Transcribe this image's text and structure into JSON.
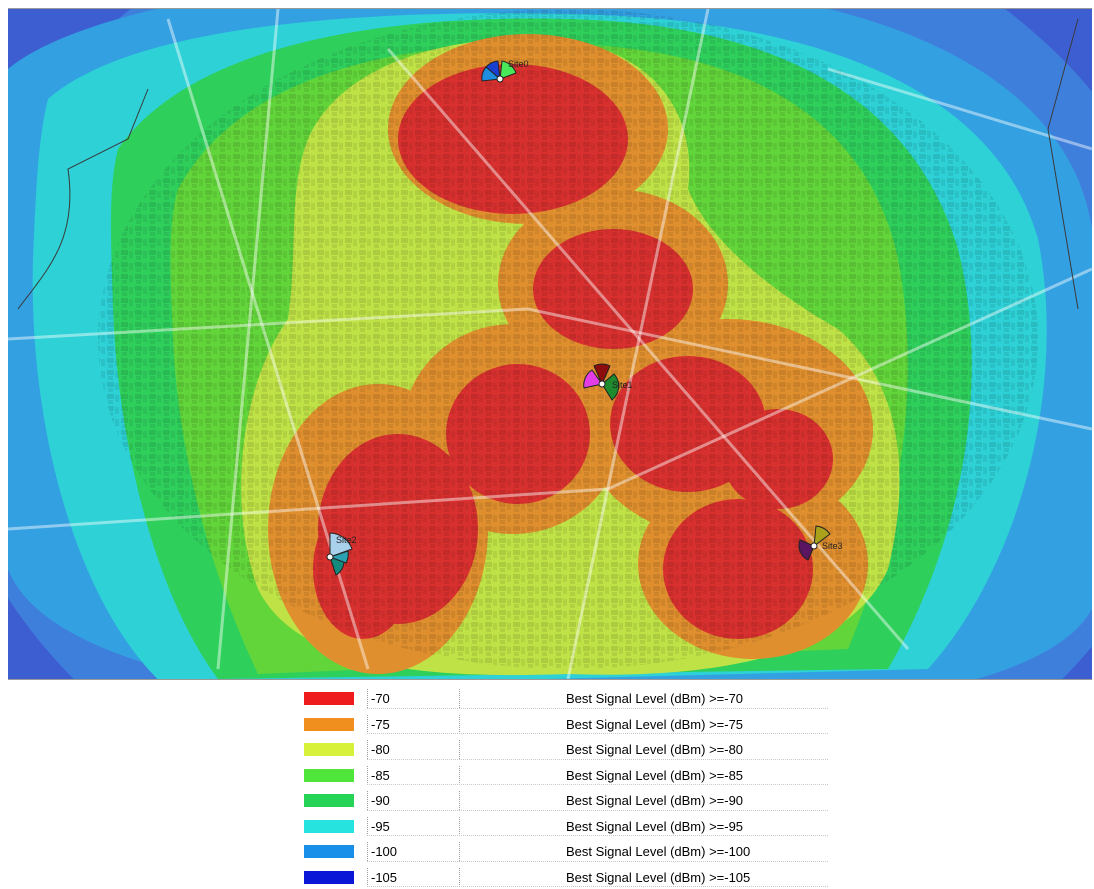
{
  "map": {
    "sites": [
      {
        "label": "Site0",
        "sectors": [
          "#1a3fd1",
          "#49e85a",
          "#1e8fe0"
        ]
      },
      {
        "label": "Site1",
        "sectors": [
          "#8b0d0d",
          "#e33ee6",
          "#1f8a2e"
        ]
      },
      {
        "label": "Site2",
        "sectors": [
          "#a9d1ec",
          "#138a7c",
          "#2aa0b0"
        ]
      },
      {
        "label": "Site3",
        "sectors": [
          "#a9a21a",
          "#8a1b8a",
          "#5a1560"
        ]
      }
    ]
  },
  "legend": {
    "items": [
      {
        "color": "#ee1c1c",
        "value": "-70",
        "label": "Best Signal Level (dBm) >=-70"
      },
      {
        "color": "#f08f1e",
        "value": "-75",
        "label": "Best Signal Level (dBm) >=-75"
      },
      {
        "color": "#d7f03a",
        "value": "-80",
        "label": "Best Signal Level (dBm) >=-80"
      },
      {
        "color": "#4fe53a",
        "value": "-85",
        "label": "Best Signal Level (dBm) >=-85"
      },
      {
        "color": "#25d456",
        "value": "-90",
        "label": "Best Signal Level (dBm) >=-90"
      },
      {
        "color": "#27e3e0",
        "value": "-95",
        "label": "Best Signal Level (dBm) >=-95"
      },
      {
        "color": "#1a8fea",
        "value": "-100",
        "label": "Best Signal Level (dBm) >=-100"
      },
      {
        "color": "#0a17d6",
        "value": "-105",
        "label": "Best Signal Level (dBm) >=-105"
      }
    ]
  }
}
